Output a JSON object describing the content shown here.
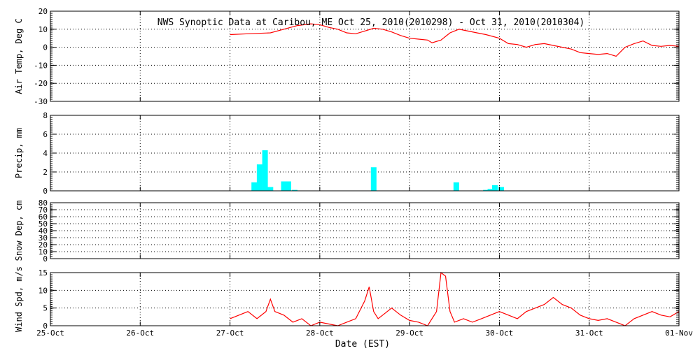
{
  "title": "NWS Synoptic Data at Caribou, ME   Oct 25, 2010(2010298) - Oct 31, 2010(2010304)",
  "x_axis": {
    "label": "Date (EST)",
    "ticks": [
      "25-Oct",
      "26-Oct",
      "27-Oct",
      "28-Oct",
      "29-Oct",
      "30-Oct",
      "31-Oct",
      "01-Nov"
    ]
  },
  "colors": {
    "temp": "#ff0000",
    "precip": "#00ffff",
    "wind": "#ff0000",
    "axes": "#000000"
  },
  "chart_data": [
    {
      "type": "line",
      "ylabel": "Air Temp, Deg C",
      "ylim": [
        -30,
        20
      ],
      "yticks": [
        -30,
        -20,
        -10,
        0,
        10,
        20
      ],
      "x_unit": "days since 25-Oct 00:00",
      "x": [
        2.0,
        2.2,
        2.45,
        2.6,
        2.75,
        2.9,
        3.0,
        3.1,
        3.2,
        3.3,
        3.4,
        3.5,
        3.6,
        3.7,
        3.8,
        3.9,
        4.0,
        4.1,
        4.2,
        4.25,
        4.35,
        4.45,
        4.55,
        4.65,
        4.75,
        4.85,
        5.0,
        5.1,
        5.2,
        5.3,
        5.4,
        5.5,
        5.6,
        5.7,
        5.8,
        5.9,
        6.0,
        6.1,
        6.2,
        6.3,
        6.4,
        6.5,
        6.6,
        6.7,
        6.8,
        6.9,
        7.0
      ],
      "values": [
        7,
        7.5,
        8,
        10,
        12,
        13,
        12.5,
        11,
        10,
        8,
        7.5,
        9,
        10.5,
        10,
        8.5,
        6.5,
        5,
        4.5,
        4,
        2.5,
        4,
        8,
        10,
        9,
        8,
        7,
        5,
        2,
        1.5,
        0,
        1.5,
        2,
        1,
        0,
        -1,
        -3,
        -3.5,
        -4,
        -3.5,
        -5,
        0,
        2,
        3.5,
        1,
        0.5,
        1,
        0.5
      ]
    },
    {
      "type": "bar",
      "ylabel": "Precip, mm",
      "ylim": [
        0,
        8
      ],
      "yticks": [
        0,
        2,
        4,
        6,
        8
      ],
      "x_unit": "days since 25-Oct 00:00",
      "x": [
        2.27,
        2.33,
        2.39,
        2.45,
        2.6,
        2.65,
        2.72,
        3.6,
        4.52,
        4.85,
        4.9,
        4.95,
        5.02
      ],
      "values": [
        0.9,
        2.8,
        4.3,
        0.4,
        1.0,
        1.0,
        0.1,
        2.5,
        0.9,
        0.1,
        0.2,
        0.6,
        0.4
      ]
    },
    {
      "type": "line",
      "ylabel": "Snow Dep, cm",
      "ylim": [
        0,
        80
      ],
      "yticks": [
        0,
        10,
        20,
        30,
        40,
        50,
        60,
        70,
        80
      ],
      "x": [],
      "values": []
    },
    {
      "type": "line",
      "ylabel": "Wind Spd, m/s",
      "ylim": [
        0,
        15
      ],
      "yticks": [
        0,
        5,
        10,
        15
      ],
      "x_unit": "days since 25-Oct 00:00",
      "x": [
        2.0,
        2.1,
        2.2,
        2.3,
        2.4,
        2.45,
        2.5,
        2.6,
        2.7,
        2.8,
        2.9,
        3.0,
        3.1,
        3.2,
        3.3,
        3.4,
        3.5,
        3.55,
        3.6,
        3.65,
        3.7,
        3.8,
        3.9,
        4.0,
        4.1,
        4.2,
        4.3,
        4.35,
        4.4,
        4.45,
        4.5,
        4.6,
        4.7,
        4.8,
        4.9,
        5.0,
        5.1,
        5.2,
        5.3,
        5.4,
        5.5,
        5.6,
        5.7,
        5.8,
        5.9,
        6.0,
        6.1,
        6.2,
        6.3,
        6.4,
        6.5,
        6.6,
        6.7,
        6.8,
        6.9,
        7.0
      ],
      "values": [
        2,
        3,
        4,
        2,
        4,
        7.5,
        4,
        3,
        1,
        2,
        0,
        1,
        0.5,
        0,
        1,
        2,
        7,
        11,
        4,
        2,
        3,
        5,
        3,
        1.5,
        1,
        0,
        4,
        16,
        14,
        4,
        1,
        2,
        1,
        2,
        3,
        4,
        3,
        2,
        4,
        5,
        6,
        8,
        6,
        5,
        3,
        2,
        1.5,
        2,
        1,
        0,
        2,
        3,
        4,
        3,
        2.5,
        4
      ]
    }
  ]
}
